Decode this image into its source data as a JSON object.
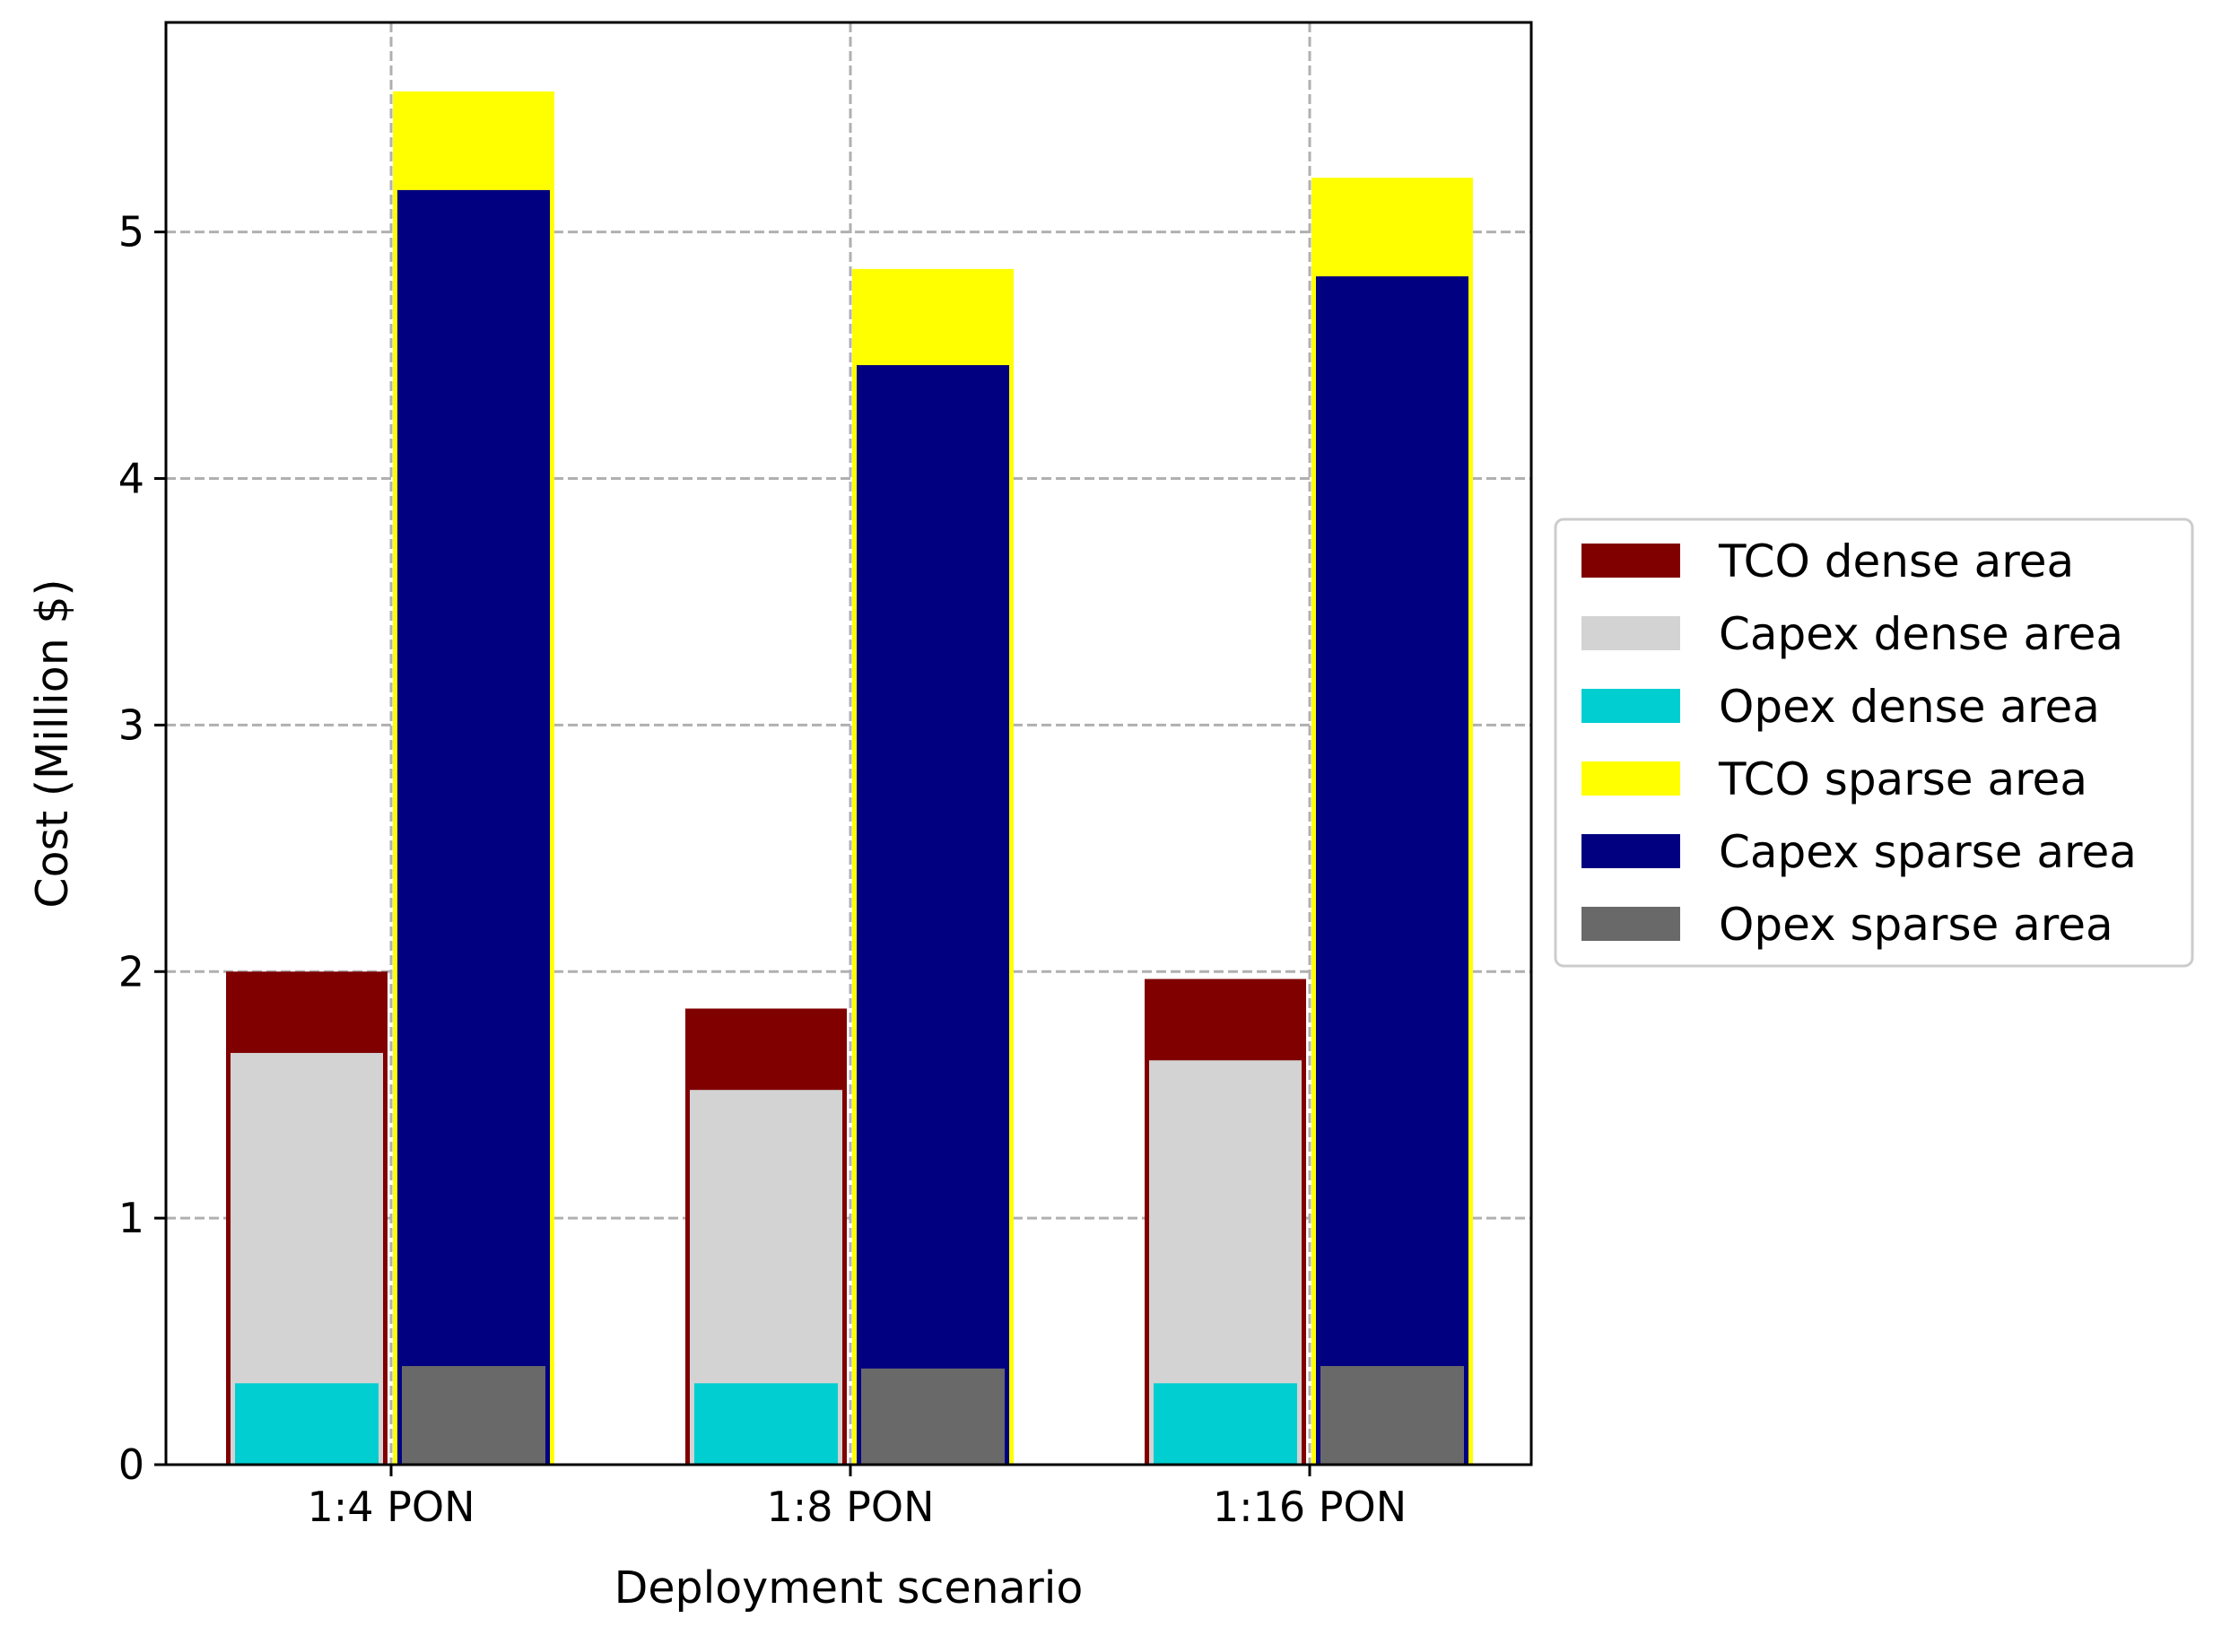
{
  "chart_data": {
    "type": "bar",
    "xlabel": "Deployment scenario",
    "ylabel": "Cost (Million $)",
    "ylim": [
      0,
      5.85
    ],
    "yticks": [
      0,
      1,
      2,
      3,
      4,
      5
    ],
    "categories": [
      "1:4 PON",
      "1:8 PON",
      "1:16 PON"
    ],
    "grid": true,
    "legend_position": "right",
    "series": [
      {
        "name": "TCO dense area",
        "group": "dense",
        "values": [
          2.0,
          1.85,
          1.97
        ],
        "color": "#800000"
      },
      {
        "name": "Capex dense area",
        "group": "dense",
        "values": [
          1.67,
          1.52,
          1.64
        ],
        "color": "#d3d3d3"
      },
      {
        "name": "Opex dense area",
        "group": "dense",
        "values": [
          0.33,
          0.33,
          0.33
        ],
        "color": "#00ced1"
      },
      {
        "name": "TCO sparse area",
        "group": "sparse",
        "values": [
          5.57,
          4.85,
          5.22
        ],
        "color": "#ffff00"
      },
      {
        "name": "Capex sparse area",
        "group": "sparse",
        "values": [
          5.17,
          4.46,
          4.82
        ],
        "color": "#000080"
      },
      {
        "name": "Opex sparse area",
        "group": "sparse",
        "values": [
          0.4,
          0.39,
          0.4
        ],
        "color": "#696969"
      }
    ]
  }
}
